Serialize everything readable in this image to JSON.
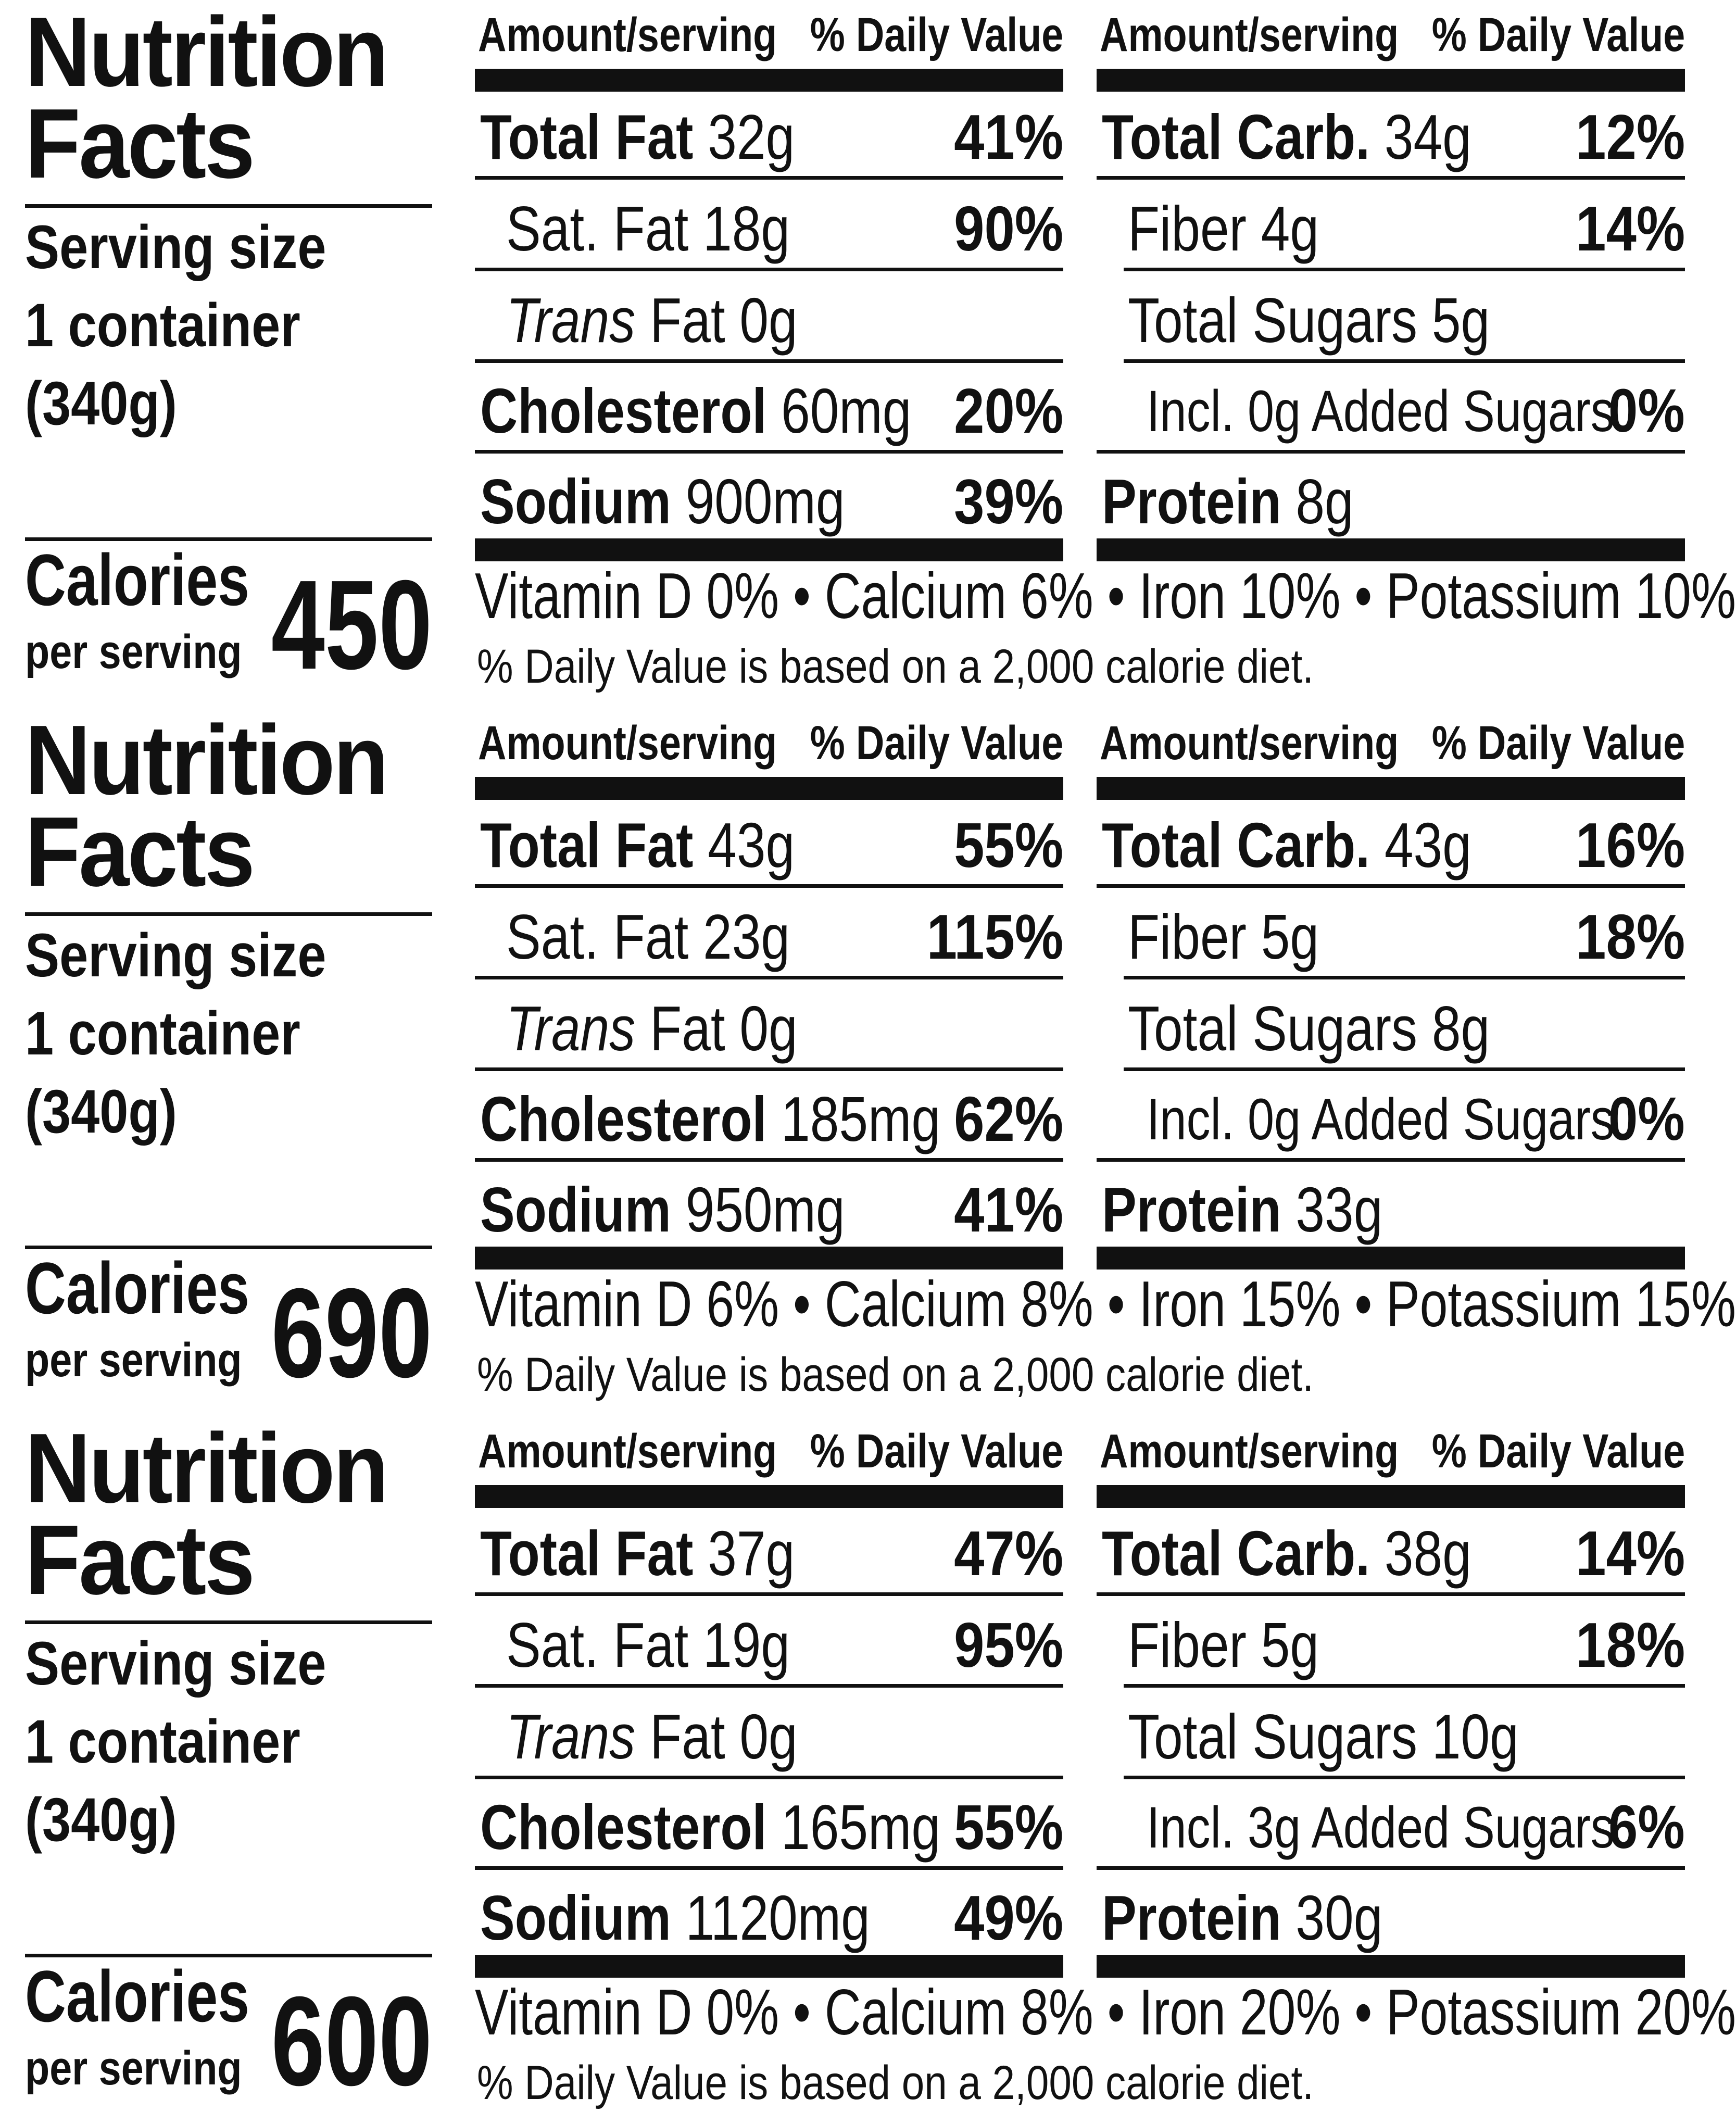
{
  "panels": [
    {
      "title_line1": "Nutrition",
      "title_line2": "Facts",
      "serving_line1": "Serving size",
      "serving_line2": "1 container",
      "serving_line3": "(340g)",
      "calories_label": "Calories",
      "calories_sub": "per serving",
      "calories_value": "450",
      "header_amount": "Amount/serving",
      "header_dv": "% Daily Value",
      "left_rows": [
        {
          "bold": "Total Fat",
          "normal": " 32g",
          "pct": "41%"
        },
        {
          "bold": "",
          "normal": "Sat. Fat 18g",
          "pct": "90%"
        },
        {
          "italic": "Trans",
          "normal": " Fat 0g",
          "pct": ""
        },
        {
          "bold": "Cholesterol",
          "normal": " 60mg",
          "pct": "20%"
        },
        {
          "bold": "Sodium",
          "normal": " 900mg",
          "pct": "39%"
        }
      ],
      "right_rows": [
        {
          "bold": "Total Carb.",
          "normal": " 34g",
          "pct": "12%"
        },
        {
          "bold": "",
          "normal": "Fiber 4g",
          "pct": "14%"
        },
        {
          "bold": "",
          "normal": "Total Sugars 5g",
          "pct": ""
        },
        {
          "bold": "",
          "normal": "Incl. 0g Added Sugars",
          "pct": "0%"
        },
        {
          "bold": "Protein",
          "normal": " 8g",
          "pct": ""
        }
      ],
      "vitamins": "Vitamin D 0% • Calcium 6% • Iron 10% • Potassium 10%",
      "footnote": "% Daily Value is based on a 2,000 calorie diet."
    },
    {
      "title_line1": "Nutrition",
      "title_line2": "Facts",
      "serving_line1": "Serving size",
      "serving_line2": "1 container",
      "serving_line3": "(340g)",
      "calories_label": "Calories",
      "calories_sub": "per serving",
      "calories_value": "690",
      "header_amount": "Amount/serving",
      "header_dv": "% Daily Value",
      "left_rows": [
        {
          "bold": "Total Fat",
          "normal": " 43g",
          "pct": "55%"
        },
        {
          "bold": "",
          "normal": "Sat. Fat 23g",
          "pct": "115%"
        },
        {
          "italic": "Trans",
          "normal": " Fat 0g",
          "pct": ""
        },
        {
          "bold": "Cholesterol",
          "normal": " 185mg",
          "pct": "62%"
        },
        {
          "bold": "Sodium",
          "normal": " 950mg",
          "pct": "41%"
        }
      ],
      "right_rows": [
        {
          "bold": "Total Carb.",
          "normal": " 43g",
          "pct": "16%"
        },
        {
          "bold": "",
          "normal": "Fiber 5g",
          "pct": "18%"
        },
        {
          "bold": "",
          "normal": "Total Sugars 8g",
          "pct": ""
        },
        {
          "bold": "",
          "normal": "Incl. 0g Added Sugars",
          "pct": "0%"
        },
        {
          "bold": "Protein",
          "normal": " 33g",
          "pct": ""
        }
      ],
      "vitamins": "Vitamin D 6% • Calcium 8% • Iron 15% • Potassium 15%",
      "footnote": "% Daily Value is based on a 2,000 calorie diet."
    },
    {
      "title_line1": "Nutrition",
      "title_line2": "Facts",
      "serving_line1": "Serving size",
      "serving_line2": "1 container",
      "serving_line3": "(340g)",
      "calories_label": "Calories",
      "calories_sub": "per serving",
      "calories_value": "600",
      "header_amount": "Amount/serving",
      "header_dv": "% Daily Value",
      "left_rows": [
        {
          "bold": "Total Fat",
          "normal": " 37g",
          "pct": "47%"
        },
        {
          "bold": "",
          "normal": "Sat. Fat 19g",
          "pct": "95%"
        },
        {
          "italic": "Trans",
          "normal": " Fat 0g",
          "pct": ""
        },
        {
          "bold": "Cholesterol",
          "normal": " 165mg",
          "pct": "55%"
        },
        {
          "bold": "Sodium",
          "normal": " 1120mg",
          "pct": "49%"
        }
      ],
      "right_rows": [
        {
          "bold": "Total Carb.",
          "normal": " 38g",
          "pct": "14%"
        },
        {
          "bold": "",
          "normal": "Fiber 5g",
          "pct": "18%"
        },
        {
          "bold": "",
          "normal": "Total Sugars 10g",
          "pct": ""
        },
        {
          "bold": "",
          "normal": "Incl. 3g Added Sugars",
          "pct": "6%"
        },
        {
          "bold": "Protein",
          "normal": " 30g",
          "pct": ""
        }
      ],
      "vitamins": "Vitamin D 0% • Calcium 8% • Iron 20% • Potassium 20%",
      "footnote": "% Daily Value is based on a 2,000 calorie diet."
    }
  ]
}
